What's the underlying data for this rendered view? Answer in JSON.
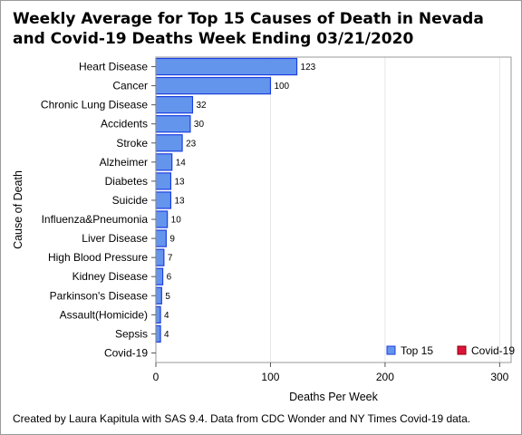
{
  "chart_data": {
    "type": "bar",
    "orientation": "horizontal",
    "title": "Weekly Average for Top 15 Causes of Death in Nevada and Covid-19 Deaths Week Ending 03/21/2020",
    "xlabel": "Deaths Per Week",
    "ylabel": "Cause of Death",
    "xlim": [
      0,
      310
    ],
    "xticks": [
      0,
      100,
      200,
      300
    ],
    "grid": true,
    "legend_position": "bottom-right",
    "categories": [
      "Heart Disease",
      "Cancer",
      "Chronic Lung Disease",
      "Accidents",
      "Stroke",
      "Alzheimer",
      "Diabetes",
      "Suicide",
      "Influenza&Pneumonia",
      "Liver Disease",
      "High Blood Pressure",
      "Kidney Disease",
      "Parkinson's Disease",
      "Assault(Homicide)",
      "Sepsis",
      "Covid-19"
    ],
    "series": [
      {
        "name": "Top 15",
        "color": "#6495ED",
        "edge_color": "#1C3FE0",
        "values": [
          123,
          100,
          32,
          30,
          23,
          14,
          13,
          13,
          10,
          9,
          7,
          6,
          5,
          4,
          4,
          null
        ]
      },
      {
        "name": "Covid-19",
        "color": "#DC143C",
        "edge_color": "#8B0000",
        "values": [
          null,
          null,
          null,
          null,
          null,
          null,
          null,
          null,
          null,
          null,
          null,
          null,
          null,
          null,
          null,
          0
        ]
      }
    ]
  },
  "footnote": "Created by Laura Kapitula with SAS 9.4. Data from CDC Wonder and NY Times Covid-19 data."
}
